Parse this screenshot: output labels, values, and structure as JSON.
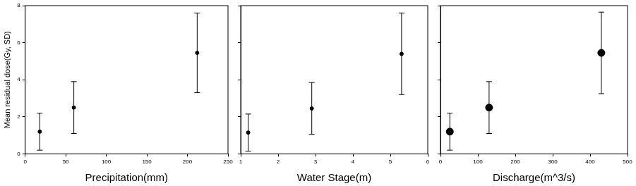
{
  "chart_data": [
    {
      "type": "scatter",
      "xlabel": "Precipitation(mm)",
      "ylabel": "Mean residual dose(Gy, SD)",
      "x": [
        18,
        60,
        212
      ],
      "values": [
        1.2,
        2.5,
        5.45
      ],
      "errors": [
        1.0,
        1.4,
        2.15
      ],
      "color": "#000000",
      "marker": "circle",
      "xlim": [
        0,
        250
      ],
      "xticks": [
        0,
        50,
        100,
        150,
        200,
        250
      ],
      "ylim": [
        0,
        8
      ],
      "yticks": [
        0,
        2,
        4,
        6,
        8
      ],
      "grid": false
    },
    {
      "type": "scatter",
      "xlabel": "Water Stage(m)",
      "x": [
        1.2,
        2.9,
        5.3
      ],
      "values": [
        1.15,
        2.45,
        5.4
      ],
      "errors": [
        1.0,
        1.4,
        2.2
      ],
      "color": "#000000",
      "marker": "circle",
      "xlim": [
        1,
        6
      ],
      "xticks": [
        1,
        2,
        3,
        4,
        5,
        6
      ],
      "ylim": [
        0,
        8
      ],
      "yticks": [
        0,
        2,
        4,
        6,
        8
      ],
      "grid": false,
      "tick_labels": "x"
    },
    {
      "type": "scatter",
      "xlabel": "Discharge(m^3/s)",
      "x": [
        25,
        130,
        430
      ],
      "values": [
        1.2,
        2.5,
        5.45
      ],
      "errors": [
        1.0,
        1.4,
        2.2
      ],
      "color": "#000000",
      "marker": "circle",
      "xlim": [
        0,
        500
      ],
      "xticks": [
        0,
        100,
        200,
        300,
        400,
        500
      ],
      "ylim": [
        0,
        8
      ],
      "yticks": [
        0,
        2,
        4,
        6,
        8
      ],
      "grid": false,
      "tick_labels": "x"
    }
  ]
}
